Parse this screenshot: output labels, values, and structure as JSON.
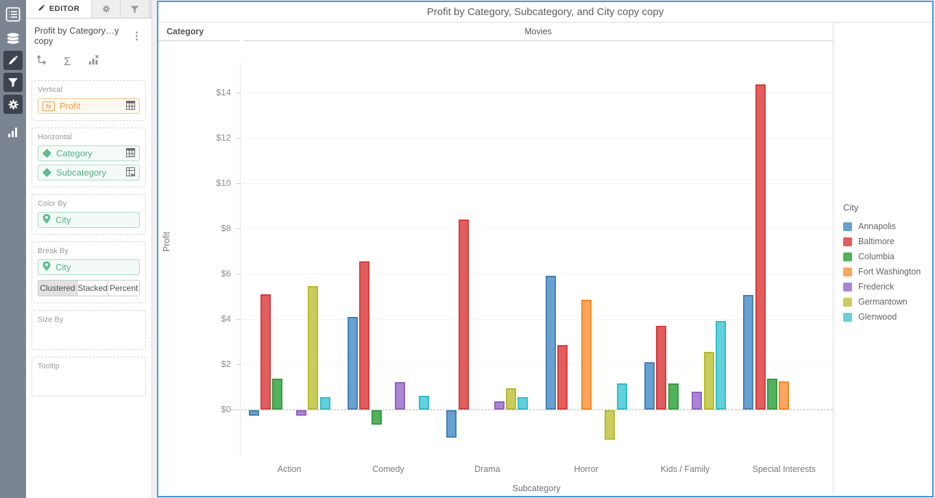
{
  "left_rail": {
    "icons": [
      "worksheet-list-icon",
      "data-source-icon",
      "edit-pencil-icon",
      "filter-funnel-icon",
      "settings-gear-icon",
      "chart-bars-icon"
    ]
  },
  "editor_panel": {
    "tabs": {
      "editor_label": "EDITOR",
      "icons": [
        "pencil-icon",
        "gear-icon",
        "funnel-icon"
      ]
    },
    "title": "Profit by Category…y copy",
    "menu_glyph": "⋮",
    "toolbar": {
      "sigma_glyph": "Σ",
      "icons": [
        "swap-axes-icon",
        "sigma-icon",
        "chart-clear-icon"
      ]
    },
    "sections": {
      "vertical": {
        "label": "Vertical",
        "field": "Profit"
      },
      "horizontal": {
        "label": "Horizontal",
        "fields": [
          "Category",
          "Subcategory"
        ]
      },
      "color_by": {
        "label": "Color By",
        "field": "City"
      },
      "break_by": {
        "label": "Break By",
        "field": "City",
        "modes": [
          "Clustered",
          "Stacked",
          "Percent"
        ],
        "active_mode": "Clustered"
      },
      "size_by": {
        "label": "Size By"
      },
      "tooltip": {
        "label": "Tooltip"
      }
    }
  },
  "chart": {
    "title": "Profit by Category, Subcategory, and City copy copy",
    "facet_header": {
      "left_label": "Category",
      "value": "Movies"
    }
  },
  "chart_data": {
    "type": "bar",
    "title": "Profit by Category, Subcategory, and City copy copy",
    "facet": "Movies",
    "xlabel": "Subcategory",
    "ylabel": "Profit",
    "categories": [
      "Action",
      "Comedy",
      "Drama",
      "Horror",
      "Kids / Family",
      "Special Interests"
    ],
    "series": [
      {
        "name": "Annapolis",
        "color": "#66a1d2",
        "border": "#4480b4",
        "values": [
          -0.25,
          4.1,
          -1.2,
          5.9,
          2.1,
          5.05
        ]
      },
      {
        "name": "Baltimore",
        "color": "#e25d5d",
        "border": "#d93a3a",
        "values": [
          5.1,
          6.55,
          8.4,
          2.85,
          3.7,
          14.35
        ]
      },
      {
        "name": "Columbia",
        "color": "#52b35c",
        "border": "#349a42",
        "values": [
          1.35,
          -0.65,
          null,
          null,
          1.15,
          1.35
        ]
      },
      {
        "name": "Fort Washington",
        "color": "#fda55e",
        "border": "#f8861d",
        "values": [
          null,
          null,
          null,
          4.85,
          null,
          1.25
        ]
      },
      {
        "name": "Frederick",
        "color": "#ab85d5",
        "border": "#9161c4",
        "values": [
          -0.25,
          1.2,
          0.35,
          null,
          0.8,
          null
        ]
      },
      {
        "name": "Germantown",
        "color": "#c9cd5b",
        "border": "#b5ba2c",
        "values": [
          5.45,
          null,
          0.95,
          -1.3,
          2.55,
          null
        ]
      },
      {
        "name": "Glenwood",
        "color": "#62d1db",
        "border": "#2dbcca",
        "values": [
          0.55,
          0.6,
          0.55,
          1.15,
          3.9,
          null
        ]
      }
    ],
    "yticks": [
      0,
      2,
      4,
      6,
      8,
      10,
      12,
      14
    ],
    "ytick_prefix": "$",
    "ylim": [
      -2.2,
      15.3
    ],
    "grid": true,
    "zero_line": "dashed",
    "legend": {
      "title": "City",
      "position": "right"
    },
    "bar_mode": "clustered"
  }
}
